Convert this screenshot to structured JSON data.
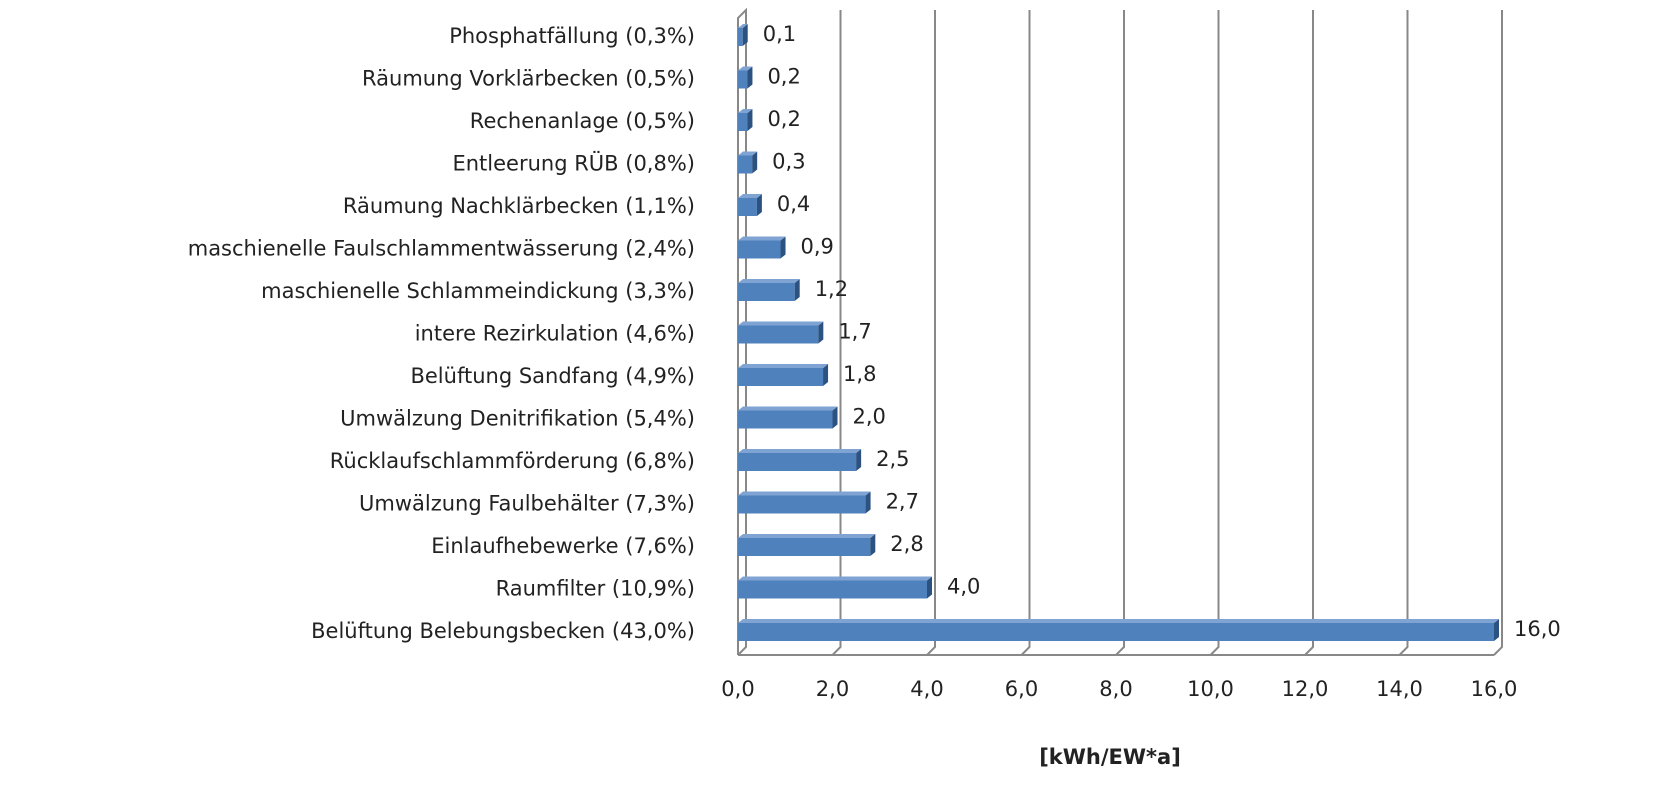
{
  "chart_data": {
    "type": "bar",
    "orientation": "horizontal",
    "x_label": "[kWh/EW*a]",
    "categories": [
      "Phosphatfällung (0,3%)",
      "Räumung Vorklärbecken (0,5%)",
      "Rechenanlage (0,5%)",
      "Entleerung RÜB (0,8%)",
      "Räumung Nachklärbecken (1,1%)",
      "maschienelle Faulschlammentwässerung (2,4%)",
      "maschienelle Schlammeindickung (3,3%)",
      "intere Rezirkulation (4,6%)",
      "Belüftung Sandfang (4,9%)",
      "Umwälzung Denitrifikation (5,4%)",
      "Rücklaufschlammförderung (6,8%)",
      "Umwälzung Faulbehälter (7,3%)",
      "Einlaufhebewerke (7,6%)",
      "Raumfilter (10,9%)",
      "Belüftung Belebungsbecken (43,0%)"
    ],
    "values": [
      0.1,
      0.2,
      0.2,
      0.3,
      0.4,
      0.9,
      1.2,
      1.7,
      1.8,
      2.0,
      2.5,
      2.7,
      2.8,
      4.0,
      16.0
    ],
    "value_labels": [
      "0,1",
      "0,2",
      "0,2",
      "0,3",
      "0,4",
      "0,9",
      "1,2",
      "1,7",
      "1,8",
      "2,0",
      "2,5",
      "2,7",
      "2,8",
      "4,0",
      "16,0"
    ],
    "color": "#4f81bd",
    "xlim": [
      0,
      16
    ],
    "xticks": [
      {
        "value": 0,
        "label": "0,0"
      },
      {
        "value": 2,
        "label": "2,0"
      },
      {
        "value": 4,
        "label": "4,0"
      },
      {
        "value": 6,
        "label": "6,0"
      },
      {
        "value": 8,
        "label": "8,0"
      },
      {
        "value": 10,
        "label": "10,0"
      },
      {
        "value": 12,
        "label": "12,0"
      },
      {
        "value": 14,
        "label": "14,0"
      },
      {
        "value": 16,
        "label": "16,0"
      }
    ],
    "grid": true
  }
}
